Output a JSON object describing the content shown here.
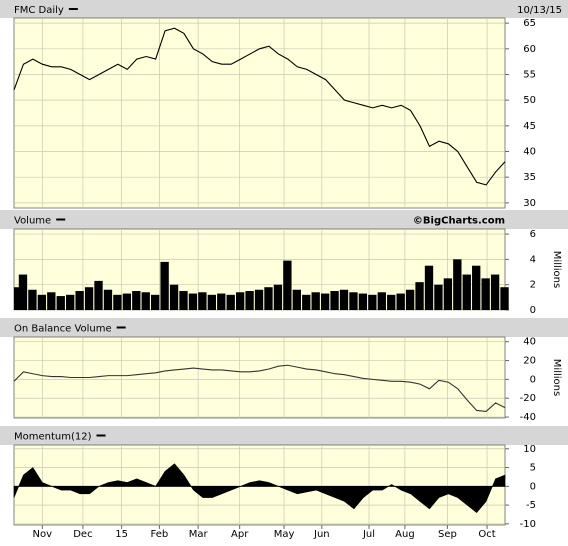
{
  "chart_data": [
    {
      "type": "line",
      "title": "FMC Daily",
      "date": "10/13/15",
      "color": "#000000",
      "x": [
        0,
        1,
        2,
        3,
        4,
        5,
        6,
        7,
        8,
        9,
        10,
        11,
        12,
        13,
        14,
        15,
        16,
        17,
        18,
        19,
        20,
        21,
        22,
        23,
        24,
        25,
        26,
        27,
        28,
        29,
        30,
        31,
        32,
        33,
        34,
        35,
        36,
        37,
        38,
        39,
        40,
        41,
        42,
        43,
        44,
        45,
        46,
        47,
        48,
        49,
        50,
        51,
        52
      ],
      "values": [
        52,
        57,
        58,
        57,
        56.5,
        56.5,
        56,
        55,
        54,
        55,
        56,
        57,
        56,
        58,
        58.5,
        58,
        63.5,
        64,
        63,
        60,
        59,
        57.5,
        57,
        57,
        58,
        59,
        60,
        60.5,
        59,
        58,
        56.5,
        56,
        55,
        54,
        52,
        50,
        49.5,
        49,
        48.5,
        49,
        48.5,
        49,
        48,
        45,
        41,
        42,
        41.5,
        40,
        37,
        34,
        33.5,
        36,
        38
      ],
      "xlim": [
        0,
        52
      ],
      "ylim": [
        29,
        66
      ],
      "yticks": [
        30,
        35,
        40,
        45,
        50,
        55,
        60,
        65
      ],
      "grid": true
    },
    {
      "type": "bar",
      "title": "Volume",
      "annotation": "©BigCharts.com",
      "y_label": "Millions",
      "color": "#000000",
      "x": [
        0,
        1,
        2,
        3,
        4,
        5,
        6,
        7,
        8,
        9,
        10,
        11,
        12,
        13,
        14,
        15,
        16,
        17,
        18,
        19,
        20,
        21,
        22,
        23,
        24,
        25,
        26,
        27,
        28,
        29,
        30,
        31,
        32,
        33,
        34,
        35,
        36,
        37,
        38,
        39,
        40,
        41,
        42,
        43,
        44,
        45,
        46,
        47,
        48,
        49,
        50,
        51,
        52
      ],
      "values": [
        1.8,
        2.8,
        1.6,
        1.2,
        1.4,
        1.1,
        1.2,
        1.5,
        1.8,
        2.3,
        1.6,
        1.2,
        1.3,
        1.5,
        1.4,
        1.2,
        3.8,
        2.0,
        1.5,
        1.3,
        1.4,
        1.2,
        1.3,
        1.2,
        1.4,
        1.5,
        1.6,
        1.8,
        2.0,
        3.9,
        1.6,
        1.2,
        1.4,
        1.3,
        1.5,
        1.6,
        1.4,
        1.3,
        1.2,
        1.4,
        1.2,
        1.3,
        1.6,
        2.2,
        3.5,
        2.0,
        2.5,
        4.0,
        2.8,
        3.5,
        2.5,
        2.8,
        1.8
      ],
      "xlim": [
        0,
        52
      ],
      "ylim": [
        0,
        6.4
      ],
      "yticks": [
        0,
        2,
        4,
        6
      ],
      "grid": true
    },
    {
      "type": "line",
      "title": "On Balance Volume",
      "y_label": "Millions",
      "color": "#333333",
      "x": [
        0,
        1,
        2,
        3,
        4,
        5,
        6,
        7,
        8,
        9,
        10,
        11,
        12,
        13,
        14,
        15,
        16,
        17,
        18,
        19,
        20,
        21,
        22,
        23,
        24,
        25,
        26,
        27,
        28,
        29,
        30,
        31,
        32,
        33,
        34,
        35,
        36,
        37,
        38,
        39,
        40,
        41,
        42,
        43,
        44,
        45,
        46,
        47,
        48,
        49,
        50,
        51,
        52
      ],
      "values": [
        -2,
        8,
        6,
        4,
        3,
        3,
        2,
        2,
        2,
        3,
        4,
        4,
        4,
        5,
        6,
        7,
        9,
        10,
        11,
        12,
        11,
        10,
        10,
        9,
        8,
        8,
        9,
        11,
        14,
        15,
        13,
        11,
        10,
        8,
        6,
        5,
        3,
        1,
        0,
        -1,
        -2,
        -2,
        -3,
        -5,
        -10,
        -1,
        -3,
        -10,
        -22,
        -33,
        -34,
        -25,
        -30
      ],
      "xlim": [
        0,
        52
      ],
      "ylim": [
        -41,
        45
      ],
      "yticks": [
        40,
        20,
        0,
        -20,
        -40
      ],
      "grid": true
    },
    {
      "type": "area",
      "title": "Momentum(12)",
      "color": "#000000",
      "x": [
        0,
        1,
        2,
        3,
        4,
        5,
        6,
        7,
        8,
        9,
        10,
        11,
        12,
        13,
        14,
        15,
        16,
        17,
        18,
        19,
        20,
        21,
        22,
        23,
        24,
        25,
        26,
        27,
        28,
        29,
        30,
        31,
        32,
        33,
        34,
        35,
        36,
        37,
        38,
        39,
        40,
        41,
        42,
        43,
        44,
        45,
        46,
        47,
        48,
        49,
        50,
        51,
        52
      ],
      "values": [
        -3,
        3,
        5,
        1,
        0,
        -1,
        -1,
        -2,
        -2,
        0,
        1,
        1.5,
        1,
        2,
        1,
        0,
        4,
        6,
        3,
        -1,
        -3,
        -3,
        -2,
        -1,
        0,
        1,
        1.5,
        1,
        0,
        -1,
        -2,
        -1.5,
        -1,
        -2,
        -3,
        -4,
        -6,
        -3,
        -1,
        -1,
        0.5,
        -1,
        -2,
        -4,
        -6,
        -3,
        -2,
        -3,
        -5,
        -7,
        -4,
        2,
        3
      ],
      "xlim": [
        0,
        52
      ],
      "ylim": [
        -10.3,
        11
      ],
      "yticks": [
        10,
        5,
        0,
        -5,
        -10
      ],
      "grid": true,
      "xticks": [
        {
          "value": 3,
          "label": "Nov"
        },
        {
          "value": 7.3,
          "label": "Dec"
        },
        {
          "value": 11.4,
          "label": "15"
        },
        {
          "value": 15.4,
          "label": "Feb"
        },
        {
          "value": 19.5,
          "label": "Mar"
        },
        {
          "value": 23.9,
          "label": "Apr"
        },
        {
          "value": 28.6,
          "label": "May"
        },
        {
          "value": 32.6,
          "label": "Jun"
        },
        {
          "value": 37.6,
          "label": "Jul"
        },
        {
          "value": 41.4,
          "label": "Aug"
        },
        {
          "value": 45.9,
          "label": "Sep"
        },
        {
          "value": 50.1,
          "label": "Oct"
        }
      ]
    }
  ]
}
